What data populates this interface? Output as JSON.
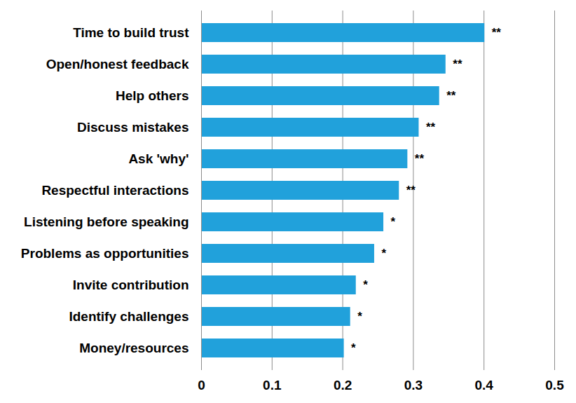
{
  "chart_data": {
    "type": "bar",
    "orientation": "horizontal",
    "categories": [
      "Time to build trust",
      "Open/honest feedback",
      "Help others",
      "Discuss mistakes",
      "Ask 'why'",
      "Respectful interactions",
      "Listening before speaking",
      "Problems as opportunities",
      "Invite contribution",
      "Identify challenges",
      "Money/resources"
    ],
    "values": [
      0.401,
      0.346,
      0.337,
      0.308,
      0.292,
      0.28,
      0.258,
      0.245,
      0.219,
      0.211,
      0.202
    ],
    "annotations": [
      "**",
      "**",
      "**",
      "**",
      "**",
      "**",
      "*",
      "*",
      "*",
      "*",
      "*"
    ],
    "color": "#21a1db",
    "xlim": [
      0,
      0.5
    ],
    "xticks": [
      0,
      0.1,
      0.2,
      0.3,
      0.4,
      0.5
    ],
    "grid": true
  }
}
